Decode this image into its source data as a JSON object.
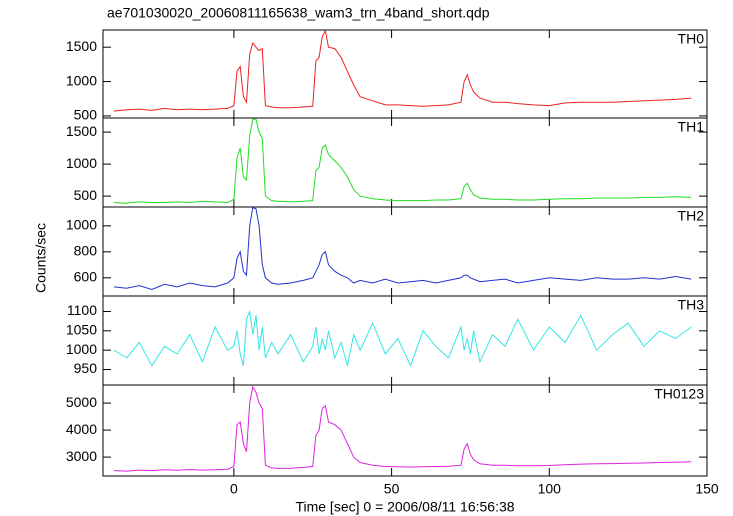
{
  "title": "ae701030020_20060811165638_wam3_trn_4band_short.qdp",
  "ylabel": "Counts/sec",
  "chart_data": [
    {
      "type": "line",
      "label": "TH0",
      "color": "#ee2222",
      "xlim": [
        -41.5,
        150
      ],
      "ylim": [
        470,
        1750
      ],
      "yticks": [
        500,
        1000,
        1500
      ],
      "x": [
        -38,
        -34,
        -30,
        -26,
        -22,
        -18,
        -14,
        -10,
        -6,
        -2,
        0,
        1,
        2,
        3,
        4,
        5,
        6,
        7,
        8,
        9,
        10,
        12,
        14,
        18,
        22,
        25,
        26,
        27,
        28,
        29,
        30,
        32,
        34,
        36,
        38,
        40,
        44,
        48,
        52,
        56,
        60,
        64,
        68,
        72,
        73,
        74,
        75,
        76,
        78,
        82,
        86,
        90,
        95,
        100,
        105,
        110,
        115,
        120,
        125,
        130,
        135,
        140,
        145
      ],
      "values": [
        570,
        590,
        600,
        580,
        610,
        590,
        600,
        590,
        600,
        610,
        650,
        1150,
        1220,
        780,
        700,
        1400,
        1560,
        1500,
        1450,
        1480,
        650,
        630,
        620,
        620,
        630,
        640,
        1300,
        1350,
        1650,
        1740,
        1500,
        1480,
        1350,
        1150,
        950,
        780,
        720,
        660,
        660,
        650,
        640,
        650,
        660,
        700,
        1000,
        1100,
        950,
        850,
        760,
        700,
        700,
        680,
        660,
        650,
        690,
        700,
        700,
        700,
        710,
        720,
        730,
        740,
        760
      ]
    },
    {
      "type": "line",
      "label": "TH1",
      "color": "#22dd22",
      "xlim": [
        -41.5,
        150
      ],
      "ylim": [
        330,
        1720
      ],
      "yticks": [
        500,
        1000,
        1500
      ],
      "x": [
        -38,
        -34,
        -30,
        -26,
        -22,
        -18,
        -14,
        -10,
        -6,
        -2,
        0,
        1,
        2,
        3,
        4,
        5,
        6,
        7,
        8,
        9,
        10,
        12,
        14,
        18,
        22,
        25,
        26,
        27,
        28,
        29,
        30,
        32,
        34,
        36,
        38,
        40,
        44,
        48,
        52,
        56,
        60,
        64,
        68,
        72,
        73,
        74,
        75,
        76,
        78,
        82,
        86,
        90,
        95,
        100,
        105,
        110,
        115,
        120,
        125,
        130,
        135,
        140,
        145
      ],
      "values": [
        400,
        390,
        410,
        400,
        400,
        410,
        400,
        420,
        410,
        400,
        450,
        1100,
        1250,
        800,
        750,
        1450,
        1700,
        1700,
        1500,
        1400,
        500,
        430,
        420,
        410,
        420,
        430,
        900,
        950,
        1250,
        1300,
        1150,
        1050,
        950,
        800,
        600,
        500,
        460,
        440,
        430,
        430,
        430,
        440,
        440,
        460,
        650,
        700,
        600,
        520,
        470,
        450,
        450,
        440,
        440,
        450,
        460,
        460,
        470,
        470,
        470,
        480,
        480,
        490,
        480
      ]
    },
    {
      "type": "line",
      "label": "TH2",
      "color": "#2233cc",
      "xlim": [
        -41.5,
        150
      ],
      "ylim": [
        460,
        1145
      ],
      "yticks": [
        600,
        800,
        1000
      ],
      "x": [
        -38,
        -34,
        -30,
        -26,
        -22,
        -18,
        -14,
        -10,
        -6,
        -2,
        0,
        1,
        2,
        3,
        4,
        5,
        6,
        7,
        8,
        9,
        10,
        12,
        14,
        18,
        22,
        25,
        26,
        27,
        28,
        29,
        30,
        32,
        34,
        36,
        38,
        40,
        44,
        48,
        52,
        56,
        60,
        64,
        68,
        72,
        73,
        74,
        75,
        76,
        78,
        82,
        86,
        90,
        95,
        100,
        105,
        110,
        115,
        120,
        125,
        130,
        135,
        140,
        145
      ],
      "values": [
        530,
        520,
        540,
        510,
        550,
        530,
        560,
        540,
        530,
        560,
        600,
        750,
        800,
        650,
        620,
        1000,
        1140,
        1130,
        1000,
        700,
        600,
        560,
        550,
        560,
        580,
        600,
        650,
        700,
        780,
        800,
        700,
        650,
        620,
        600,
        560,
        580,
        560,
        590,
        560,
        570,
        580,
        560,
        580,
        600,
        620,
        620,
        600,
        590,
        570,
        580,
        590,
        560,
        580,
        600,
        590,
        580,
        600,
        590,
        590,
        600,
        590,
        610,
        590
      ]
    },
    {
      "type": "line",
      "label": "TH3",
      "color": "#33e5e5",
      "xlim": [
        -41.5,
        150
      ],
      "ylim": [
        910,
        1140
      ],
      "yticks": [
        950,
        1000,
        1050,
        1100
      ],
      "x": [
        -38,
        -34,
        -30,
        -26,
        -22,
        -18,
        -14,
        -10,
        -6,
        -2,
        0,
        1,
        2,
        3,
        4,
        5,
        6,
        7,
        8,
        9,
        10,
        12,
        14,
        18,
        22,
        25,
        26,
        27,
        28,
        29,
        30,
        32,
        34,
        36,
        38,
        40,
        44,
        48,
        52,
        56,
        60,
        64,
        68,
        72,
        73,
        74,
        75,
        76,
        78,
        82,
        86,
        90,
        95,
        100,
        105,
        110,
        115,
        120,
        125,
        130,
        135,
        140,
        145
      ],
      "values": [
        1000,
        980,
        1020,
        960,
        1010,
        990,
        1040,
        970,
        1060,
        1000,
        1010,
        1050,
        990,
        960,
        1080,
        1100,
        1040,
        1090,
        1000,
        1060,
        980,
        1020,
        990,
        1040,
        970,
        1010,
        1060,
        990,
        1030,
        1000,
        1050,
        980,
        1020,
        960,
        1040,
        1000,
        1070,
        990,
        1030,
        960,
        1050,
        1010,
        980,
        1060,
        1000,
        1030,
        990,
        1050,
        970,
        1040,
        1010,
        1080,
        1000,
        1060,
        1020,
        1090,
        1000,
        1040,
        1070,
        1010,
        1050,
        1030,
        1060
      ]
    },
    {
      "type": "line",
      "label": "TH0123",
      "color": "#dd22dd",
      "xlim": [
        -41.5,
        150
      ],
      "ylim": [
        2300,
        5670
      ],
      "yticks": [
        3000,
        4000,
        5000
      ],
      "xticks": [
        0,
        50,
        100,
        150
      ],
      "xlabel": "Time [sec] 0 = 2006/08/11 16:56:38",
      "x": [
        -38,
        -34,
        -30,
        -26,
        -22,
        -18,
        -14,
        -10,
        -6,
        -2,
        0,
        1,
        2,
        3,
        4,
        5,
        6,
        7,
        8,
        9,
        10,
        12,
        14,
        18,
        22,
        25,
        26,
        27,
        28,
        29,
        30,
        32,
        34,
        36,
        38,
        40,
        44,
        48,
        52,
        56,
        60,
        64,
        68,
        72,
        73,
        74,
        75,
        76,
        78,
        82,
        86,
        90,
        95,
        100,
        105,
        110,
        115,
        120,
        125,
        130,
        135,
        140,
        145
      ],
      "values": [
        2500,
        2480,
        2520,
        2500,
        2530,
        2510,
        2540,
        2520,
        2530,
        2550,
        2650,
        4200,
        4300,
        3500,
        3200,
        5000,
        5600,
        5400,
        5000,
        4800,
        2700,
        2600,
        2580,
        2590,
        2620,
        2650,
        3800,
        4000,
        4800,
        4900,
        4300,
        4200,
        4000,
        3500,
        3000,
        2800,
        2700,
        2650,
        2640,
        2630,
        2640,
        2650,
        2660,
        2700,
        3300,
        3500,
        3100,
        2900,
        2750,
        2700,
        2700,
        2680,
        2680,
        2690,
        2720,
        2740,
        2750,
        2760,
        2770,
        2780,
        2800,
        2810,
        2830
      ]
    }
  ]
}
